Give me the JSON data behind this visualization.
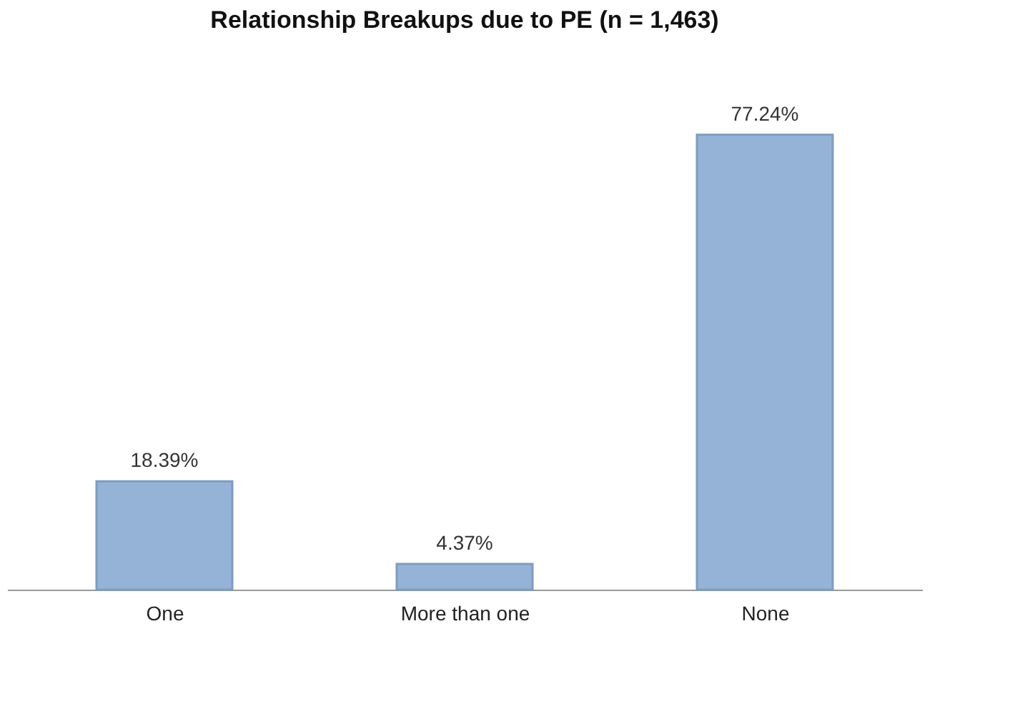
{
  "chart_data": {
    "type": "bar",
    "title": "Relationship Breakups due to PE (n = 1,463)",
    "categories": [
      "One",
      "More than one",
      "None"
    ],
    "values": [
      18.39,
      4.37,
      77.24
    ],
    "value_labels": [
      "18.39%",
      "4.37%",
      "77.24%"
    ],
    "color": "#95b3d7",
    "grid": false
  }
}
